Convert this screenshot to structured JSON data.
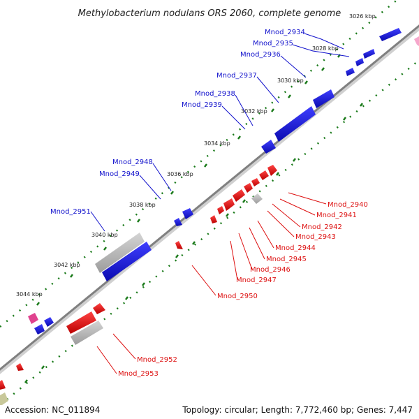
{
  "title": "Methylobacterium nodulans ORS 2060, complete genome",
  "ticks": [
    "3026 kbp",
    "3028 kbp",
    "3030 kbp",
    "3032 kbp",
    "3034 kbp",
    "3036 kbp",
    "3038 kbp",
    "3040 kbp",
    "3042 kbp",
    "3044 kbp"
  ],
  "forward_labels": [
    "Mnod_2934",
    "Mnod_2935",
    "Mnod_2936",
    "Mnod_2937",
    "Mnod_2938",
    "Mnod_2939",
    "Mnod_2948",
    "Mnod_2949",
    "Mnod_2951"
  ],
  "reverse_labels": [
    "Mnod_2940",
    "Mnod_2941",
    "Mnod_2942",
    "Mnod_2943",
    "Mnod_2944",
    "Mnod_2945",
    "Mnod_2946",
    "Mnod_2947",
    "Mnod_2950",
    "Mnod_2952",
    "Mnod_2953"
  ],
  "colors": {
    "forward": "#1111cc",
    "reverse": "#dd1111",
    "pseudo": "#aaaaaa",
    "backbone": "#888888",
    "tick": "#1a7a1a",
    "pink": "#e0438f",
    "olive": "#c8c89a"
  },
  "footer": {
    "accession": "Accession: NC_011894",
    "stats": "Topology: circular; Length: 7,772,460 bp; Genes: 7,447"
  }
}
